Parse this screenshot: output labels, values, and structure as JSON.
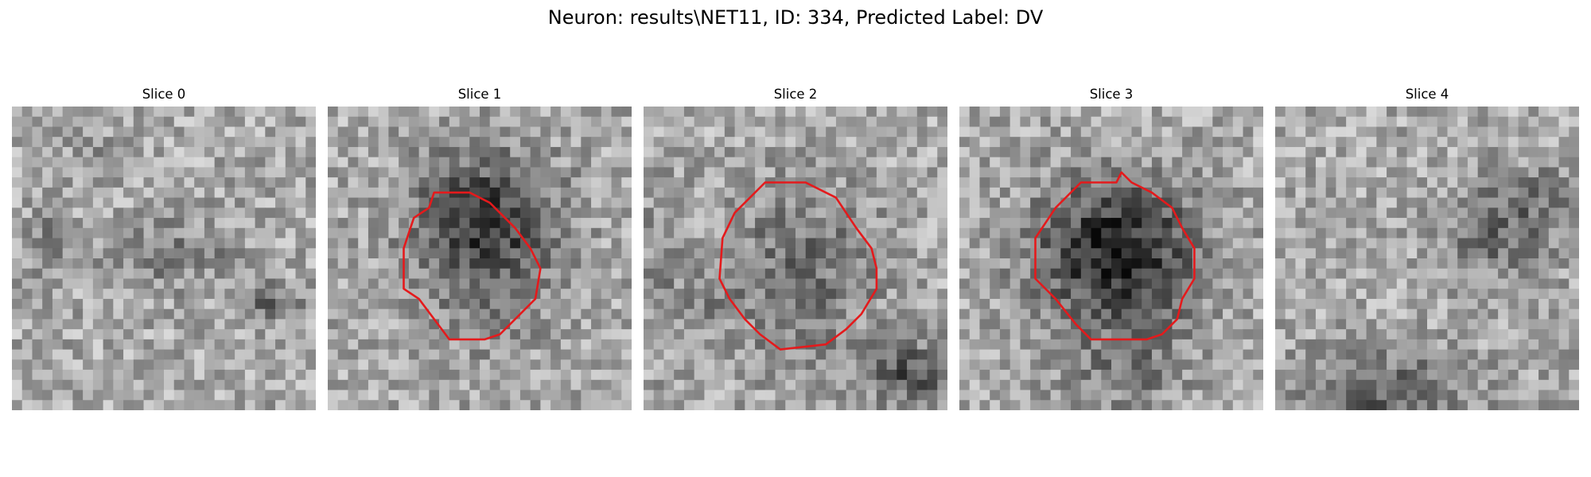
{
  "figure": {
    "title": "Neuron: results\\NET11, ID: 334, Predicted Label: DV"
  },
  "colors": {
    "contour": "#e41a1c",
    "colormap": "grayscale"
  },
  "panels": [
    {
      "label": "Slice 0",
      "has_contour": false
    },
    {
      "label": "Slice 1",
      "has_contour": true
    },
    {
      "label": "Slice 2",
      "has_contour": true
    },
    {
      "label": "Slice 3",
      "has_contour": true
    },
    {
      "label": "Slice 4",
      "has_contour": false
    }
  ]
}
